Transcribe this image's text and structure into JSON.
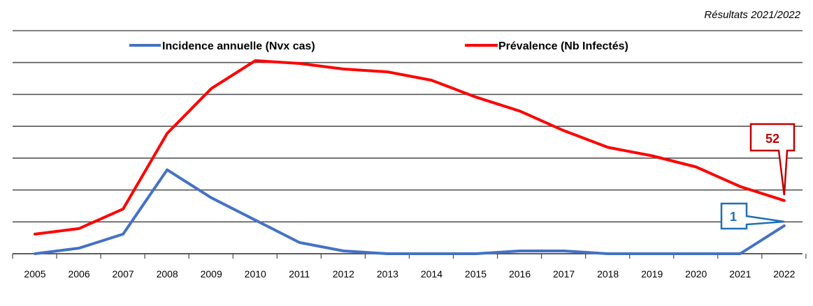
{
  "chart_data": {
    "type": "line",
    "title": "",
    "subtitle": "Résultats 2021/2022",
    "xlabel": "",
    "ylabel": "",
    "x": [
      "2005",
      "2006",
      "2007",
      "2008",
      "2009",
      "2010",
      "2011",
      "2012",
      "2013",
      "2014",
      "2015",
      "2016",
      "2017",
      "2018",
      "2019",
      "2020",
      "2021",
      "2022"
    ],
    "ylim": [
      0,
      300
    ],
    "grid": true,
    "y_tick_labels_shown": false,
    "legend_position": "top",
    "series": [
      {
        "name": "Incidence annuelle (Nvx cas)",
        "color": "#4472C4",
        "values": [
          0,
          2,
          7,
          30,
          20,
          12,
          4,
          1,
          0,
          0,
          0,
          1,
          1,
          0,
          0,
          0,
          0,
          1
        ]
      },
      {
        "name": "Prévalence (Nb Infectés)",
        "color": "#FF0000",
        "values": [
          7,
          9,
          16,
          43,
          59,
          69,
          68,
          66,
          65,
          62,
          56,
          51,
          44,
          38,
          35,
          31,
          24,
          52
        ]
      }
    ],
    "annotations": [
      {
        "text": "52",
        "series": "Prévalence (Nb Infectés)",
        "x": "2022",
        "color": "#C00000"
      },
      {
        "text": "1",
        "series": "Incidence annuelle (Nvx cas)",
        "x": "2022",
        "color": "#1F6FB5"
      }
    ]
  }
}
